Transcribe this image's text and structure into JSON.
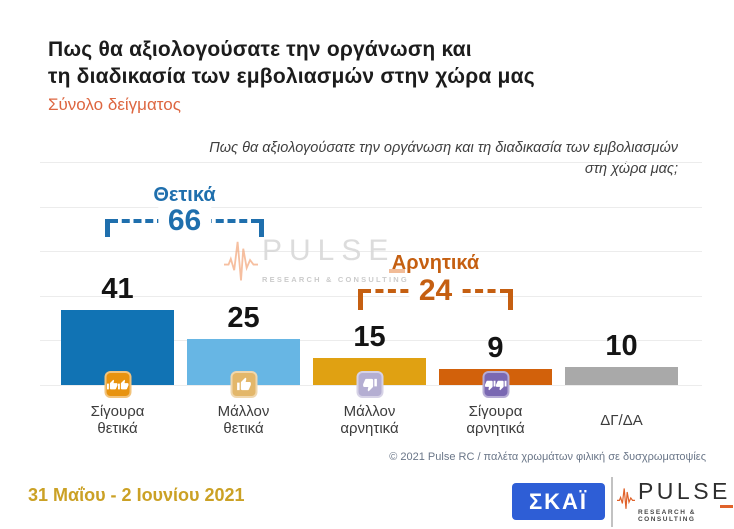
{
  "header": {
    "title_line1": "Πως θα αξιολογούσατε την οργάνωση και",
    "title_line2": "τη διαδικασία των εμβολιασμών στην χώρα μας",
    "subtitle": "Σύνολο δείγματος"
  },
  "question": {
    "line1": "Πως θα αξιολογούσατε την οργάνωση και τη διαδικασία των εμβολιασμών",
    "line2": "στη χώρα μας;"
  },
  "chart_data": {
    "type": "bar",
    "title": "Πως θα αξιολογούσατε την οργάνωση και τη διαδικασία των εμβολιασμών στη χώρα μας;",
    "categories": [
      "Σίγουρα θετικά",
      "Μάλλον θετικά",
      "Μάλλον αρνητικά",
      "Σίγουρα αρνητικά",
      "ΔΓ/ΔΑ"
    ],
    "values": [
      41,
      25,
      15,
      9,
      10
    ],
    "bar_colors": [
      "#1173b4",
      "#67b6e4",
      "#e0a112",
      "#d2610b",
      "#a9a9a9"
    ],
    "badges": [
      {
        "icon": "thumbs-up",
        "count": 2,
        "color": "#e8930f"
      },
      {
        "icon": "thumbs-up",
        "count": 1,
        "color": "#e3b76a"
      },
      {
        "icon": "thumbs-down",
        "count": 1,
        "color": "#b4aed2"
      },
      {
        "icon": "thumbs-down",
        "count": 2,
        "color": "#7a68b2"
      },
      null
    ],
    "annotations": {
      "positive": {
        "label": "Θετικά",
        "value": 66,
        "color": "#1f6fad",
        "spans_categories": [
          "Σίγουρα θετικά",
          "Μάλλον θετικά"
        ]
      },
      "negative": {
        "label": "Αρνητικά",
        "value": 24,
        "color": "#c55f11",
        "spans_categories": [
          "Μάλλον αρνητικά",
          "Σίγουρα αρνητικά"
        ]
      }
    },
    "ylabel": "",
    "xlabel": "",
    "ylim": [
      0,
      125
    ],
    "grid": true,
    "legend": "none"
  },
  "watermark": {
    "brand": "PULSE",
    "tagline": "RESEARCH & CONSULTING"
  },
  "footer": {
    "copyright": "© 2021 Pulse RC  /  παλέτα χρωμάτων φιλική σε δυσχρωματοψίες",
    "date_range": "31 Μαΐου - 2 Ιουνίου 2021",
    "skai_logo_text": "ΣΚΑΪ",
    "pulse_logo_brand": "PULSE",
    "pulse_logo_tagline": "RESEARCH & CONSULTING"
  }
}
